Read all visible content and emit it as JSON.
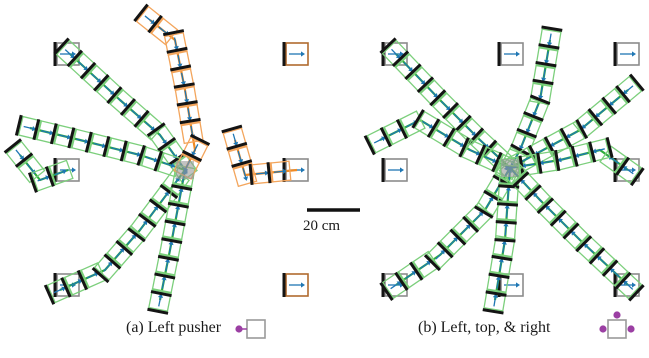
{
  "figure": {
    "scale_label": "20 cm",
    "caption_a": "(a) Left pusher",
    "caption_b": "(b) Left, top, & right"
  },
  "colors": {
    "background": "#ffffff",
    "box_gray": "#9a9a9a",
    "pusher_black": "#141414",
    "path_green": "#2fae3a",
    "box_green": "#7ccf7c",
    "path_orange": "#f08a24",
    "box_orange": "#f3a55c",
    "heading_blue": "#1f77b4",
    "contact_purple": "#9b3fa3",
    "goal_marker": "#b06b2e",
    "goal_gray": "#8c8c8c"
  },
  "icons": [
    "box-outline-icon",
    "pusher-contact-icon",
    "scale-bar-icon"
  ]
}
